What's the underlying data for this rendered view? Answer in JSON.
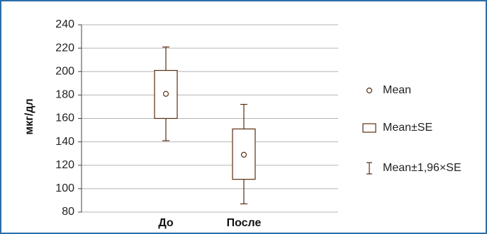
{
  "chart_data": {
    "type": "box",
    "title": "",
    "ylabel": "мкг/дл",
    "xlabel": "",
    "ylim": [
      80,
      240
    ],
    "yticks": [
      80,
      100,
      120,
      140,
      160,
      180,
      200,
      220,
      240
    ],
    "grid": true,
    "legend_position": "right",
    "categories": [
      "До",
      "После"
    ],
    "series": [
      {
        "category": "До",
        "mean": 181,
        "se_low": 160,
        "se_high": 201,
        "ci_low": 141,
        "ci_high": 221
      },
      {
        "category": "После",
        "mean": 129,
        "se_low": 108,
        "se_high": 151,
        "ci_low": 87,
        "ci_high": 172
      }
    ],
    "legend": [
      {
        "symbol": "circle",
        "label": "Mean"
      },
      {
        "symbol": "box",
        "label": "Mean±SE"
      },
      {
        "symbol": "whisker",
        "label": "Mean±1,96×SE"
      }
    ],
    "colors": {
      "box": "#5a2e10",
      "grid": "#b5b5b5",
      "axis": "#444444",
      "frame": "#2a6fa8"
    }
  }
}
